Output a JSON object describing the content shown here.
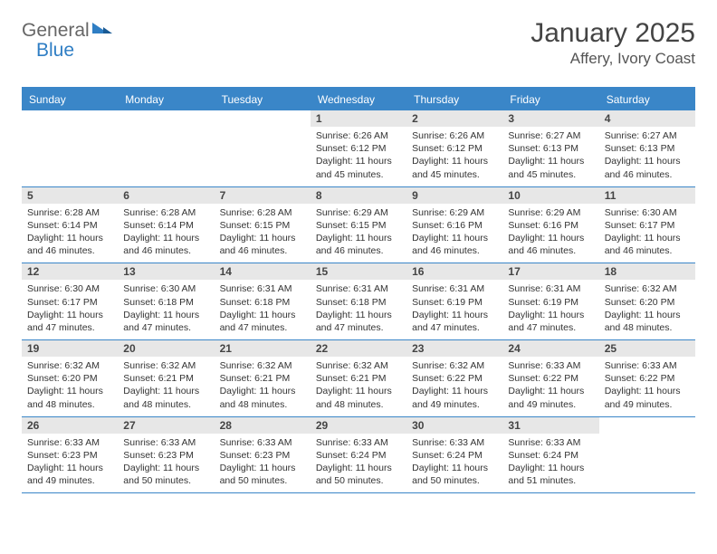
{
  "brand": {
    "part1": "General",
    "part2": "Blue"
  },
  "title": "January 2025",
  "location": "Affery, Ivory Coast",
  "theme": {
    "header_bg": "#3a86c8",
    "header_text": "#ffffff",
    "daynum_bg": "#e7e7e7",
    "border": "#3a86c8",
    "text": "#333333",
    "title_fontsize": 30,
    "subtitle_fontsize": 17,
    "dayname_fontsize": 12,
    "body_fontsize": 10.5
  },
  "day_names": [
    "Sunday",
    "Monday",
    "Tuesday",
    "Wednesday",
    "Thursday",
    "Friday",
    "Saturday"
  ],
  "labels": {
    "sunrise": "Sunrise:",
    "sunset": "Sunset:",
    "daylight": "Daylight:"
  },
  "weeks": [
    [
      {
        "n": "",
        "sr": "",
        "ss": "",
        "dl": ""
      },
      {
        "n": "",
        "sr": "",
        "ss": "",
        "dl": ""
      },
      {
        "n": "",
        "sr": "",
        "ss": "",
        "dl": ""
      },
      {
        "n": "1",
        "sr": "6:26 AM",
        "ss": "6:12 PM",
        "dl": "11 hours and 45 minutes."
      },
      {
        "n": "2",
        "sr": "6:26 AM",
        "ss": "6:12 PM",
        "dl": "11 hours and 45 minutes."
      },
      {
        "n": "3",
        "sr": "6:27 AM",
        "ss": "6:13 PM",
        "dl": "11 hours and 45 minutes."
      },
      {
        "n": "4",
        "sr": "6:27 AM",
        "ss": "6:13 PM",
        "dl": "11 hours and 46 minutes."
      }
    ],
    [
      {
        "n": "5",
        "sr": "6:28 AM",
        "ss": "6:14 PM",
        "dl": "11 hours and 46 minutes."
      },
      {
        "n": "6",
        "sr": "6:28 AM",
        "ss": "6:14 PM",
        "dl": "11 hours and 46 minutes."
      },
      {
        "n": "7",
        "sr": "6:28 AM",
        "ss": "6:15 PM",
        "dl": "11 hours and 46 minutes."
      },
      {
        "n": "8",
        "sr": "6:29 AM",
        "ss": "6:15 PM",
        "dl": "11 hours and 46 minutes."
      },
      {
        "n": "9",
        "sr": "6:29 AM",
        "ss": "6:16 PM",
        "dl": "11 hours and 46 minutes."
      },
      {
        "n": "10",
        "sr": "6:29 AM",
        "ss": "6:16 PM",
        "dl": "11 hours and 46 minutes."
      },
      {
        "n": "11",
        "sr": "6:30 AM",
        "ss": "6:17 PM",
        "dl": "11 hours and 46 minutes."
      }
    ],
    [
      {
        "n": "12",
        "sr": "6:30 AM",
        "ss": "6:17 PM",
        "dl": "11 hours and 47 minutes."
      },
      {
        "n": "13",
        "sr": "6:30 AM",
        "ss": "6:18 PM",
        "dl": "11 hours and 47 minutes."
      },
      {
        "n": "14",
        "sr": "6:31 AM",
        "ss": "6:18 PM",
        "dl": "11 hours and 47 minutes."
      },
      {
        "n": "15",
        "sr": "6:31 AM",
        "ss": "6:18 PM",
        "dl": "11 hours and 47 minutes."
      },
      {
        "n": "16",
        "sr": "6:31 AM",
        "ss": "6:19 PM",
        "dl": "11 hours and 47 minutes."
      },
      {
        "n": "17",
        "sr": "6:31 AM",
        "ss": "6:19 PM",
        "dl": "11 hours and 47 minutes."
      },
      {
        "n": "18",
        "sr": "6:32 AM",
        "ss": "6:20 PM",
        "dl": "11 hours and 48 minutes."
      }
    ],
    [
      {
        "n": "19",
        "sr": "6:32 AM",
        "ss": "6:20 PM",
        "dl": "11 hours and 48 minutes."
      },
      {
        "n": "20",
        "sr": "6:32 AM",
        "ss": "6:21 PM",
        "dl": "11 hours and 48 minutes."
      },
      {
        "n": "21",
        "sr": "6:32 AM",
        "ss": "6:21 PM",
        "dl": "11 hours and 48 minutes."
      },
      {
        "n": "22",
        "sr": "6:32 AM",
        "ss": "6:21 PM",
        "dl": "11 hours and 48 minutes."
      },
      {
        "n": "23",
        "sr": "6:32 AM",
        "ss": "6:22 PM",
        "dl": "11 hours and 49 minutes."
      },
      {
        "n": "24",
        "sr": "6:33 AM",
        "ss": "6:22 PM",
        "dl": "11 hours and 49 minutes."
      },
      {
        "n": "25",
        "sr": "6:33 AM",
        "ss": "6:22 PM",
        "dl": "11 hours and 49 minutes."
      }
    ],
    [
      {
        "n": "26",
        "sr": "6:33 AM",
        "ss": "6:23 PM",
        "dl": "11 hours and 49 minutes."
      },
      {
        "n": "27",
        "sr": "6:33 AM",
        "ss": "6:23 PM",
        "dl": "11 hours and 50 minutes."
      },
      {
        "n": "28",
        "sr": "6:33 AM",
        "ss": "6:23 PM",
        "dl": "11 hours and 50 minutes."
      },
      {
        "n": "29",
        "sr": "6:33 AM",
        "ss": "6:24 PM",
        "dl": "11 hours and 50 minutes."
      },
      {
        "n": "30",
        "sr": "6:33 AM",
        "ss": "6:24 PM",
        "dl": "11 hours and 50 minutes."
      },
      {
        "n": "31",
        "sr": "6:33 AM",
        "ss": "6:24 PM",
        "dl": "11 hours and 51 minutes."
      },
      {
        "n": "",
        "sr": "",
        "ss": "",
        "dl": ""
      }
    ]
  ]
}
